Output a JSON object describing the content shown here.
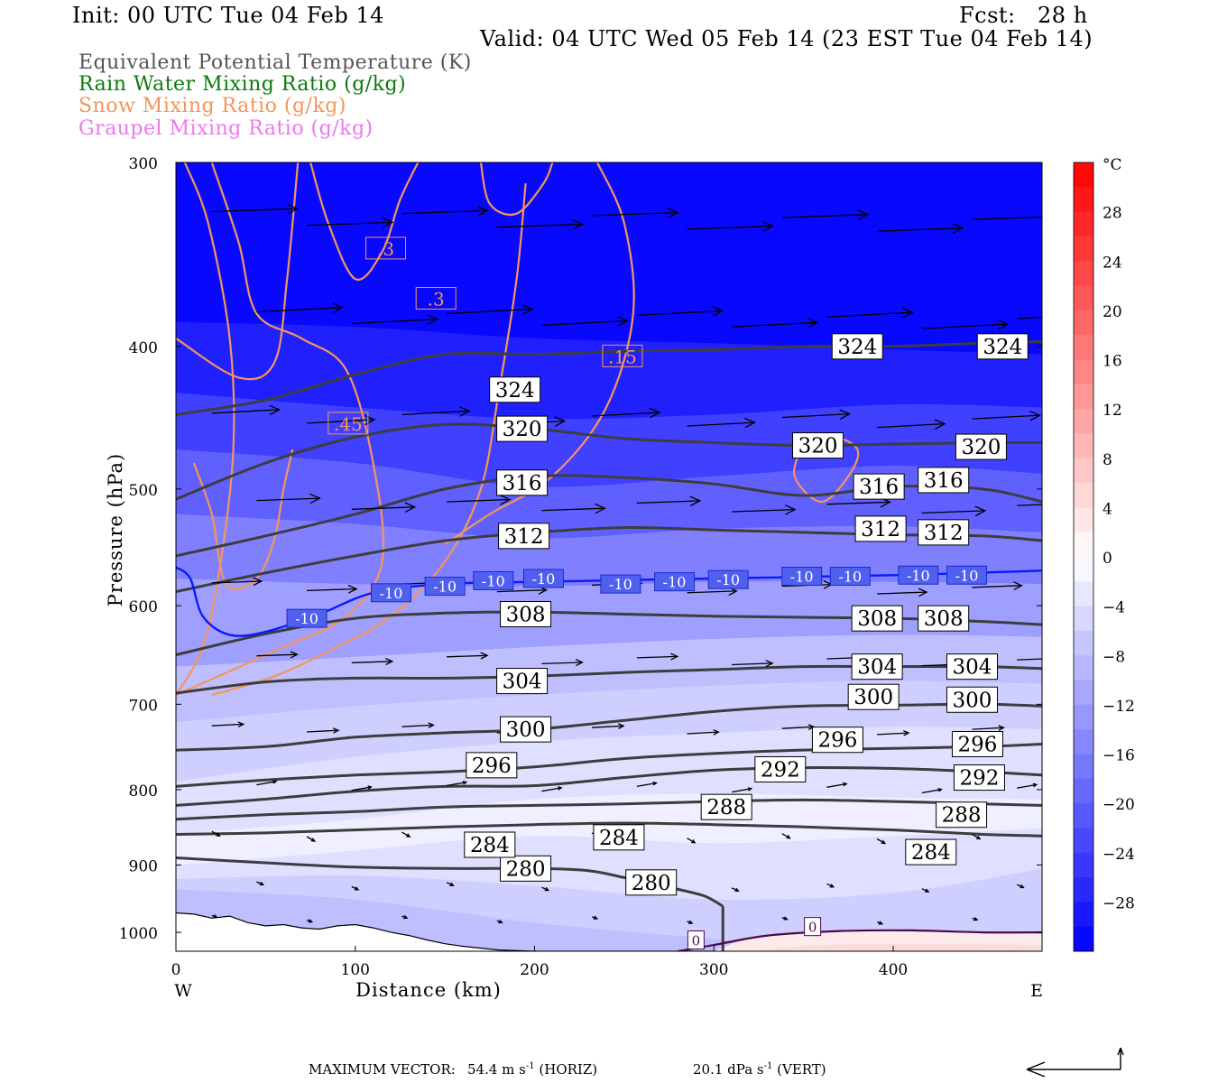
{
  "header": {
    "init": "Init: 00 UTC Tue 04 Feb 14",
    "fcst": "Fcst:   28 h",
    "valid": "Valid: 04 UTC Wed 05 Feb 14 (23 EST Tue 04 Feb 14)"
  },
  "legend": {
    "fields": [
      {
        "label": "Equivalent Potential Temperature (K)",
        "color": "#555555"
      },
      {
        "label": "Rain Water Mixing Ratio (g/kg)",
        "color": "#0a7a0a"
      },
      {
        "label": "Snow Mixing Ratio (g/kg)",
        "color": "#f4955c"
      },
      {
        "label": "Graupel Mixing Ratio (g/kg)",
        "color": "#ee77ee"
      }
    ]
  },
  "chart_data": {
    "type": "heatmap",
    "xlabel": "Distance (km)",
    "ylabel": "Pressure (hPa)",
    "xlim": [
      0,
      483
    ],
    "ylim": [
      1030,
      300
    ],
    "y_log": true,
    "x_ticks": [
      0,
      100,
      200,
      300,
      400
    ],
    "y_ticks": [
      300,
      400,
      500,
      600,
      700,
      800,
      900,
      1000
    ],
    "x_end_labels": {
      "left": "W",
      "right": "E"
    },
    "colorbar": {
      "unit": "°C",
      "ticks": [
        28,
        24,
        20,
        16,
        12,
        8,
        4,
        0,
        -4,
        -8,
        -12,
        -16,
        -20,
        -24,
        -28
      ],
      "min": -32,
      "max": 32,
      "step": 2,
      "cold_color": "#0000ff",
      "warm_color": "#ff0000",
      "mid_color": "#ffffff"
    },
    "theta_e_contours": [
      {
        "value": 280,
        "points": [
          [
            0,
            890
          ],
          [
            50,
            897
          ],
          [
            100,
            903
          ],
          [
            150,
            905
          ],
          [
            200,
            905
          ],
          [
            230,
            908
          ],
          [
            250,
            918
          ],
          [
            280,
            935
          ],
          [
            295,
            945
          ],
          [
            305,
            960
          ]
        ]
      },
      {
        "value": 284,
        "points": [
          [
            0,
            858
          ],
          [
            50,
            856
          ],
          [
            100,
            852
          ],
          [
            150,
            848
          ],
          [
            200,
            845
          ],
          [
            250,
            843
          ],
          [
            300,
            845
          ],
          [
            350,
            848
          ],
          [
            400,
            852
          ],
          [
            450,
            858
          ],
          [
            483,
            860
          ]
        ]
      },
      {
        "value": 288,
        "points": [
          [
            0,
            838
          ],
          [
            50,
            832
          ],
          [
            100,
            828
          ],
          [
            150,
            822
          ],
          [
            200,
            820
          ],
          [
            250,
            818
          ],
          [
            300,
            815
          ],
          [
            350,
            813
          ],
          [
            400,
            815
          ],
          [
            450,
            818
          ],
          [
            483,
            820
          ]
        ]
      },
      {
        "value": 292,
        "points": [
          [
            0,
            820
          ],
          [
            50,
            812
          ],
          [
            100,
            802
          ],
          [
            150,
            796
          ],
          [
            200,
            795
          ],
          [
            250,
            785
          ],
          [
            300,
            776
          ],
          [
            350,
            773
          ],
          [
            400,
            774
          ],
          [
            450,
            778
          ],
          [
            483,
            782
          ]
        ]
      },
      {
        "value": 296,
        "points": [
          [
            0,
            796
          ],
          [
            50,
            788
          ],
          [
            100,
            782
          ],
          [
            150,
            778
          ],
          [
            200,
            772
          ],
          [
            250,
            762
          ],
          [
            300,
            756
          ],
          [
            350,
            752
          ],
          [
            400,
            750
          ],
          [
            450,
            748
          ],
          [
            483,
            745
          ]
        ]
      },
      {
        "value": 300,
        "points": [
          [
            0,
            752
          ],
          [
            50,
            748
          ],
          [
            100,
            737
          ],
          [
            150,
            732
          ],
          [
            200,
            728
          ],
          [
            250,
            718
          ],
          [
            300,
            708
          ],
          [
            350,
            702
          ],
          [
            400,
            701
          ],
          [
            450,
            700
          ],
          [
            483,
            702
          ]
        ]
      },
      {
        "value": 304,
        "points": [
          [
            0,
            688
          ],
          [
            50,
            676
          ],
          [
            100,
            672
          ],
          [
            150,
            672
          ],
          [
            200,
            670
          ],
          [
            250,
            666
          ],
          [
            300,
            663
          ],
          [
            350,
            660
          ],
          [
            400,
            660
          ],
          [
            450,
            660
          ],
          [
            483,
            662
          ]
        ]
      },
      {
        "value": 308,
        "points": [
          [
            0,
            648
          ],
          [
            50,
            627
          ],
          [
            100,
            612
          ],
          [
            150,
            607
          ],
          [
            200,
            606
          ],
          [
            250,
            608
          ],
          [
            300,
            610
          ],
          [
            350,
            611
          ],
          [
            400,
            612
          ],
          [
            450,
            615
          ],
          [
            483,
            618
          ]
        ]
      },
      {
        "value": 312,
        "points": [
          [
            0,
            587
          ],
          [
            50,
            570
          ],
          [
            100,
            555
          ],
          [
            150,
            542
          ],
          [
            200,
            535
          ],
          [
            250,
            531
          ],
          [
            300,
            533
          ],
          [
            350,
            535
          ],
          [
            400,
            537
          ],
          [
            450,
            538
          ],
          [
            483,
            542
          ]
        ]
      },
      {
        "value": 316,
        "points": [
          [
            0,
            555
          ],
          [
            50,
            538
          ],
          [
            100,
            520
          ],
          [
            150,
            500
          ],
          [
            200,
            490
          ],
          [
            250,
            491
          ],
          [
            300,
            496
          ],
          [
            350,
            505
          ],
          [
            400,
            498
          ],
          [
            450,
            500
          ],
          [
            483,
            510
          ]
        ]
      },
      {
        "value": 320,
        "points": [
          [
            0,
            508
          ],
          [
            50,
            480
          ],
          [
            100,
            461
          ],
          [
            150,
            452
          ],
          [
            200,
            455
          ],
          [
            250,
            462
          ],
          [
            300,
            465
          ],
          [
            350,
            467
          ],
          [
            400,
            466
          ],
          [
            450,
            465
          ],
          [
            483,
            465
          ]
        ]
      },
      {
        "value": 324,
        "points": [
          [
            0,
            445
          ],
          [
            50,
            435
          ],
          [
            100,
            418
          ],
          [
            150,
            405
          ],
          [
            200,
            405
          ],
          [
            250,
            403
          ],
          [
            300,
            402
          ],
          [
            350,
            400
          ],
          [
            400,
            400
          ],
          [
            450,
            398
          ],
          [
            483,
            397
          ]
        ]
      }
    ],
    "isotherm_labels": [
      "-10",
      "0"
    ],
    "snow_labels": [
      ".3",
      ".3",
      ".15",
      ".45"
    ],
    "footer": {
      "prefix": "MAXIMUM VECTOR:",
      "horiz_value": "54.4 m s",
      "horiz_exp": "-1",
      "horiz_tag": "(HORIZ)",
      "vert_value": "20.1 dPa s",
      "vert_exp": "-1",
      "vert_tag": "(VERT)"
    }
  }
}
